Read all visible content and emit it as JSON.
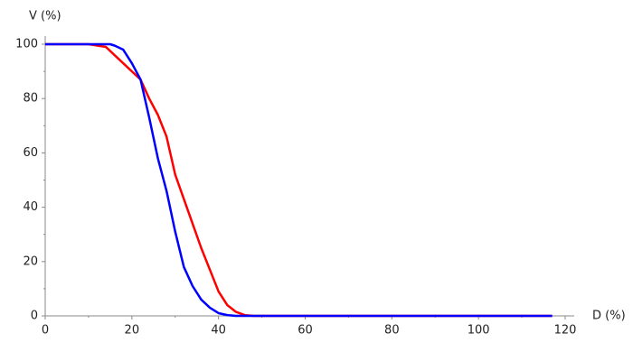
{
  "chart_data": {
    "type": "line",
    "x_label": "D (%)",
    "y_label": "V (%)",
    "xlim": [
      0,
      120
    ],
    "ylim": [
      0,
      100
    ],
    "xticks": [
      0,
      20,
      40,
      60,
      80,
      100,
      120
    ],
    "yticks": [
      0,
      20,
      40,
      60,
      80,
      100
    ],
    "grid": false,
    "series": [
      {
        "color": "#ff0000",
        "x": [
          0,
          10,
          14,
          16,
          18,
          20,
          22,
          24,
          26,
          28,
          30,
          32,
          34,
          36,
          38,
          40,
          42,
          44,
          46,
          48,
          117
        ],
        "values": [
          100,
          100,
          99,
          96,
          93,
          90,
          87,
          80,
          74,
          66,
          52,
          43,
          34,
          25,
          17,
          9,
          4,
          1.5,
          0.3,
          0,
          0
        ]
      },
      {
        "color": "#0000ff",
        "x": [
          0,
          15,
          16,
          18,
          20,
          22,
          24,
          26,
          28,
          30,
          32,
          34,
          36,
          38,
          40,
          42,
          44,
          117
        ],
        "values": [
          100,
          100,
          99.5,
          98,
          93,
          87,
          73,
          58,
          46,
          31,
          18,
          11,
          6,
          3,
          1,
          0.3,
          0,
          0
        ]
      }
    ]
  }
}
